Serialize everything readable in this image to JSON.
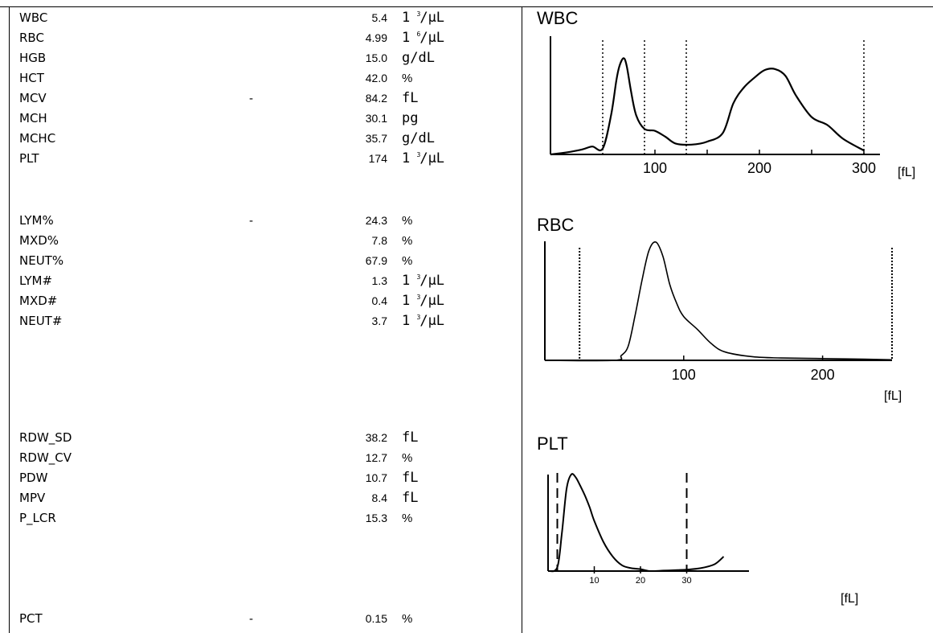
{
  "parameters": [
    {
      "name": "WBC",
      "flag": "",
      "value": "5.4",
      "unit": "1",
      "sup": "3",
      "unit_tail": "/µL"
    },
    {
      "name": "RBC",
      "flag": "",
      "value": "4.99",
      "unit": "1",
      "sup": "6",
      "unit_tail": "/µL"
    },
    {
      "name": "HGB",
      "flag": "",
      "value": "15.0",
      "unit": "g/dL"
    },
    {
      "name": "HCT",
      "flag": "",
      "value": "42.0",
      "unit": "%"
    },
    {
      "name": "MCV",
      "flag": "-",
      "value": "84.2",
      "unit": "fL"
    },
    {
      "name": "MCH",
      "flag": "",
      "value": "30.1",
      "unit": "pg"
    },
    {
      "name": "MCHC",
      "flag": "",
      "value": "35.7",
      "unit": "g/dL"
    },
    {
      "name": "PLT",
      "flag": "",
      "value": "174",
      "unit": "1",
      "sup": "3",
      "unit_tail": "/µL"
    },
    {
      "name": "LYM%",
      "flag": "-",
      "value": "24.3",
      "unit": "%"
    },
    {
      "name": "MXD%",
      "flag": "",
      "value": "7.8",
      "unit": "%"
    },
    {
      "name": "NEUT%",
      "flag": "",
      "value": "67.9",
      "unit": "%"
    },
    {
      "name": "LYM#",
      "flag": "",
      "value": "1.3",
      "unit": "1",
      "sup": "3",
      "unit_tail": "/µL"
    },
    {
      "name": "MXD#",
      "flag": "",
      "value": "0.4",
      "unit": "1",
      "sup": "3",
      "unit_tail": "/µL"
    },
    {
      "name": "NEUT#",
      "flag": "",
      "value": "3.7",
      "unit": "1",
      "sup": "3",
      "unit_tail": "/µL"
    },
    {
      "name": "RDW_SD",
      "flag": "",
      "value": "38.2",
      "unit": "fL"
    },
    {
      "name": "RDW_CV",
      "flag": "",
      "value": "12.7",
      "unit": "%"
    },
    {
      "name": "PDW",
      "flag": "",
      "value": "10.7",
      "unit": "fL"
    },
    {
      "name": "MPV",
      "flag": "",
      "value": "8.4",
      "unit": "fL"
    },
    {
      "name": "P_LCR",
      "flag": "",
      "value": "15.3",
      "unit": "%"
    },
    {
      "name": "PCT",
      "flag": "-",
      "value": "0.15",
      "unit": "%"
    }
  ],
  "graphs": {
    "wbc": {
      "title": "WBC",
      "unit_label": "[fL]",
      "ticks": [
        "100",
        "200",
        "300"
      ]
    },
    "rbc": {
      "title": "RBC",
      "unit_label": "[fL]",
      "ticks": [
        "100",
        "200"
      ]
    },
    "plt": {
      "title": "PLT",
      "unit_label": "[fL]",
      "ticks": [
        "10",
        "20",
        "30"
      ]
    }
  },
  "chart_data": [
    {
      "type": "area",
      "title": "WBC",
      "xlabel": "[fL]",
      "xlim": [
        0,
        300
      ],
      "x_ticks": [
        100,
        200,
        300
      ],
      "discriminators": [
        50,
        90,
        130,
        300
      ],
      "x": [
        0,
        15,
        30,
        40,
        50,
        58,
        63,
        66,
        70,
        73,
        77,
        82,
        90,
        100,
        110,
        120,
        135,
        150,
        165,
        175,
        185,
        195,
        205,
        215,
        225,
        235,
        250,
        265,
        280,
        300
      ],
      "values": [
        0,
        2,
        5,
        8,
        6,
        40,
        75,
        90,
        98,
        90,
        65,
        40,
        26,
        24,
        18,
        11,
        10,
        13,
        22,
        52,
        68,
        78,
        86,
        87,
        80,
        60,
        38,
        30,
        16,
        4
      ]
    },
    {
      "type": "area",
      "title": "RBC",
      "xlabel": "[fL]",
      "xlim": [
        0,
        250
      ],
      "x_ticks": [
        100,
        200
      ],
      "discriminators": [
        25,
        250
      ],
      "x": [
        0,
        50,
        55,
        60,
        65,
        70,
        75,
        80,
        85,
        90,
        95,
        100,
        110,
        120,
        130,
        150,
        170,
        200,
        230,
        250
      ],
      "values": [
        0,
        0,
        4,
        12,
        38,
        68,
        93,
        100,
        88,
        64,
        48,
        37,
        26,
        14,
        7,
        3,
        2,
        1.5,
        1,
        0.5
      ]
    },
    {
      "type": "area",
      "title": "PLT",
      "xlabel": "[fL]",
      "xlim": [
        0,
        40
      ],
      "x_ticks": [
        10,
        20,
        30
      ],
      "discriminators": [
        2,
        30
      ],
      "x": [
        0,
        2,
        3,
        4,
        5,
        6,
        7,
        8,
        9,
        10,
        12,
        14,
        16,
        18,
        20,
        22,
        25,
        28,
        30,
        33,
        36,
        38
      ],
      "values": [
        0,
        4,
        40,
        85,
        100,
        97,
        88,
        78,
        66,
        52,
        30,
        15,
        6,
        3,
        2,
        0,
        0.5,
        1,
        1.5,
        3,
        7,
        15
      ]
    }
  ]
}
